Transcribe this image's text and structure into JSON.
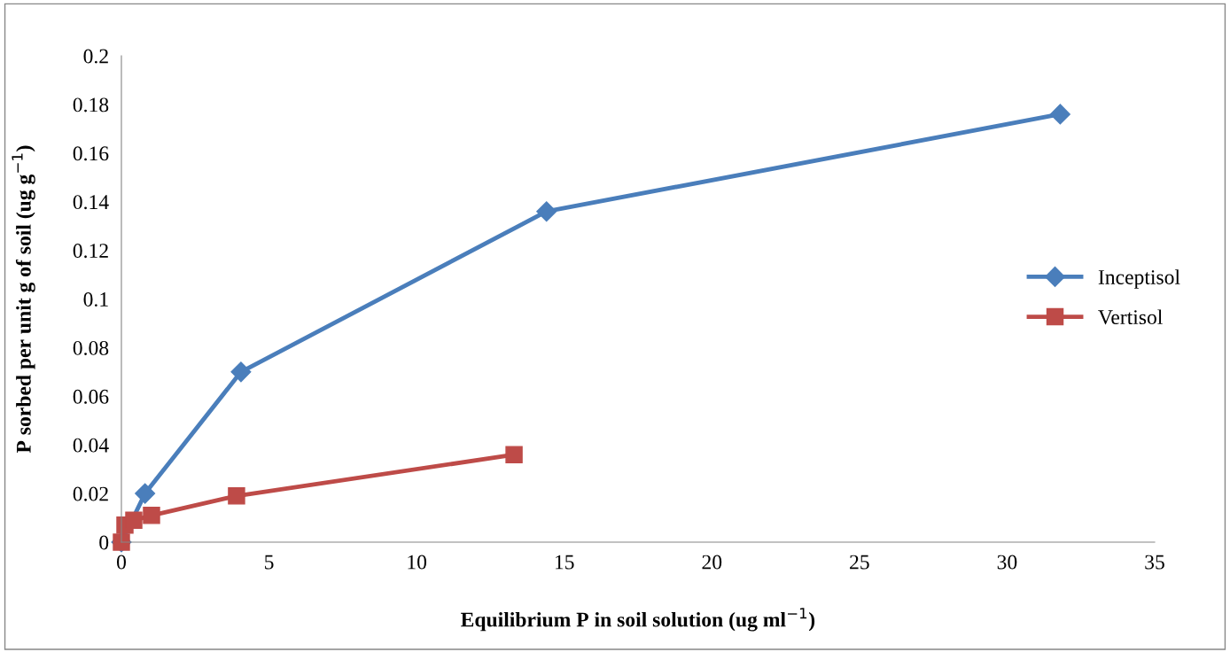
{
  "chart_data": {
    "type": "line",
    "xlabel": "Equilibrium P in soil solution (ug ml$^{−1}$)",
    "ylabel": "P sorbed per unit g of soil (ug g$^{−1}$)",
    "xlim": [
      0,
      35
    ],
    "xticks": [
      0,
      5,
      10,
      15,
      20,
      25,
      30,
      35
    ],
    "ylim": [
      0,
      0.2
    ],
    "yticks": [
      0,
      0.02,
      0.04,
      0.06,
      0.08,
      0.1,
      0.12,
      0.14,
      0.16,
      0.18,
      0.2
    ],
    "grid": false,
    "legend": "right",
    "series": [
      {
        "name": "Inceptisol",
        "color": "#4a7ebb",
        "marker": "diamond",
        "x": [
          0,
          0.8,
          4.05,
          14.4,
          31.8
        ],
        "values": [
          0,
          0.02,
          0.07,
          0.136,
          0.176
        ]
      },
      {
        "name": "Vertisol",
        "color": "#be4b48",
        "marker": "square",
        "x": [
          0,
          0.12,
          0.42,
          1.02,
          3.9,
          13.3
        ],
        "values": [
          0,
          0.007,
          0.009,
          0.011,
          0.019,
          0.036
        ]
      }
    ]
  }
}
